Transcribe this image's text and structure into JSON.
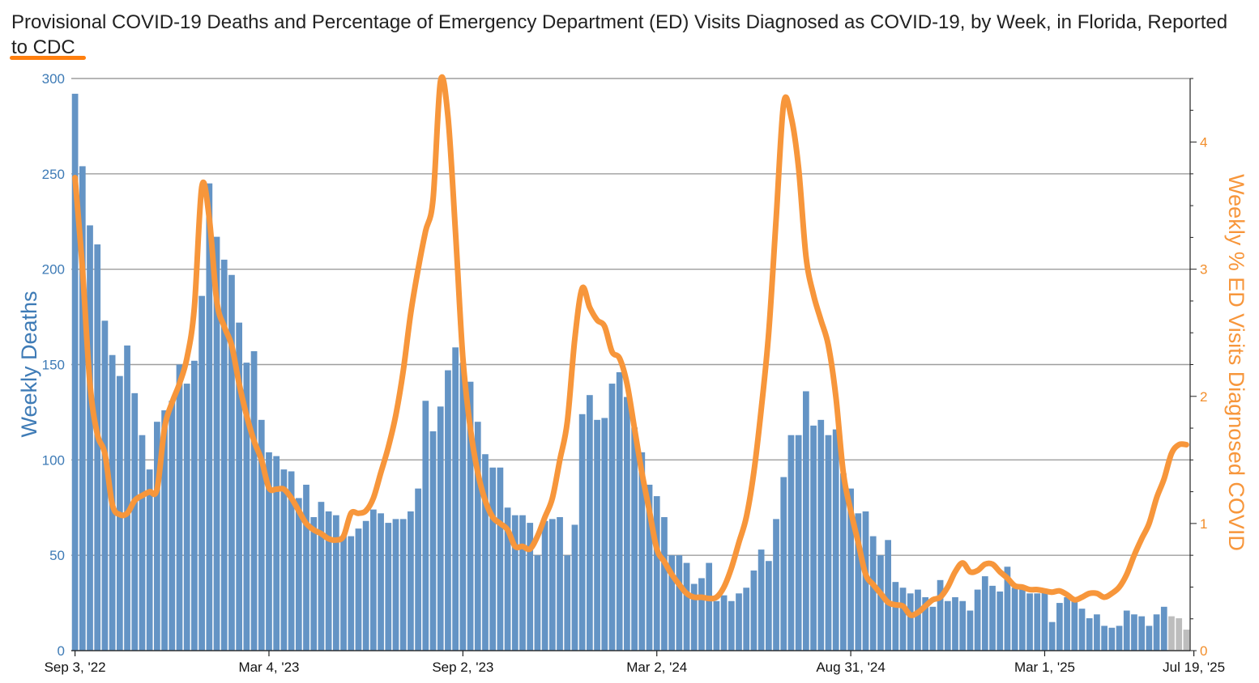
{
  "title_main": "Provisional COVID-19 Deaths and Percentage of Emergency Department (ED) Visits Diagnosed as COVID-19, by Week, in ",
  "title_state": "Florida",
  "title_suffix": ", Reported to CDC",
  "colors": {
    "bars": "#6494c5",
    "bars_incomplete": "#bdbdbd",
    "line": "#f7963b",
    "left_axis": "#3e7bb6",
    "right_axis": "#f28e2b",
    "grid": "#9e9e9e"
  },
  "chart_data": {
    "type": "bar",
    "title": "Provisional COVID-19 Deaths and Percentage of Emergency Department (ED) Visits Diagnosed as COVID-19, by Week, in Florida, Reported to CDC",
    "ylabel": "Weekly Deaths",
    "y2label": "Weekly % ED Visits Diagnosed COVID",
    "ylim": [
      0,
      300
    ],
    "y2lim": [
      0,
      4.5
    ],
    "yticks": [
      "0",
      "50",
      "100",
      "150",
      "200",
      "250",
      "300"
    ],
    "y2ticks": [
      "0",
      "1",
      "2",
      "3",
      "4"
    ],
    "xtick_labels": [
      "Sep 3, '22",
      "Mar 4, '23",
      "Sep 2, '23",
      "Mar 2, '24",
      "Aug 31, '24",
      "Mar 1, '25",
      "Jul 19, '25"
    ],
    "xtick_week_index": [
      0,
      26,
      52,
      78,
      104,
      130,
      150
    ],
    "grid": true,
    "series": [
      {
        "name": "Weekly Deaths",
        "type": "bar",
        "values": [
          292,
          254,
          223,
          213,
          173,
          155,
          144,
          160,
          135,
          113,
          95,
          120,
          126,
          131,
          150,
          140,
          152,
          186,
          245,
          217,
          205,
          197,
          172,
          151,
          157,
          121,
          104,
          102,
          95,
          94,
          80,
          87,
          70,
          78,
          73,
          71,
          60,
          60,
          64,
          68,
          74,
          72,
          67,
          69,
          69,
          73,
          85,
          131,
          115,
          128,
          147,
          159,
          151,
          141,
          120,
          103,
          96,
          96,
          75,
          71,
          71,
          67,
          50,
          68,
          69,
          70,
          50,
          66,
          124,
          134,
          121,
          122,
          140,
          146,
          133,
          117,
          104,
          87,
          81,
          70,
          50,
          50,
          46,
          35,
          38,
          46,
          26,
          29,
          26,
          30,
          33,
          42,
          53,
          47,
          69,
          91,
          113,
          113,
          136,
          118,
          121,
          113,
          116,
          93,
          85,
          72,
          73,
          60,
          50,
          58,
          36,
          33,
          30,
          32,
          28,
          23,
          37,
          26,
          28,
          26,
          21,
          32,
          39,
          34,
          31,
          44,
          33,
          33,
          30,
          30,
          31,
          15,
          25,
          28,
          26,
          22,
          17,
          19,
          13,
          12,
          13,
          21,
          19,
          18,
          13,
          19,
          23,
          18,
          17,
          11
        ],
        "incomplete_from_index": 147
      },
      {
        "name": "Weekly % ED Visits Diagnosed COVID",
        "type": "line",
        "axis": "right",
        "values": [
          3.72,
          3.0,
          2.1,
          1.7,
          1.55,
          1.15,
          1.07,
          1.08,
          1.18,
          1.22,
          1.25,
          1.27,
          1.75,
          1.95,
          2.1,
          2.3,
          2.7,
          3.65,
          3.4,
          2.75,
          2.55,
          2.4,
          2.1,
          1.85,
          1.65,
          1.5,
          1.28,
          1.27,
          1.27,
          1.2,
          1.1,
          1.0,
          0.95,
          0.92,
          0.88,
          0.87,
          0.9,
          1.08,
          1.08,
          1.1,
          1.2,
          1.4,
          1.6,
          1.85,
          2.2,
          2.65,
          3.0,
          3.3,
          3.55,
          4.48,
          4.2,
          3.3,
          2.3,
          1.75,
          1.4,
          1.18,
          1.05,
          1.0,
          0.95,
          0.82,
          0.82,
          0.8,
          0.9,
          1.05,
          1.2,
          1.5,
          1.8,
          2.45,
          2.85,
          2.7,
          2.6,
          2.55,
          2.35,
          2.3,
          2.1,
          1.75,
          1.4,
          1.1,
          0.8,
          0.7,
          0.6,
          0.52,
          0.45,
          0.42,
          0.42,
          0.41,
          0.42,
          0.5,
          0.65,
          0.85,
          1.05,
          1.4,
          1.9,
          2.5,
          3.4,
          4.3,
          4.2,
          3.8,
          3.1,
          2.8,
          2.6,
          2.4,
          2.0,
          1.4,
          1.1,
          0.85,
          0.6,
          0.52,
          0.45,
          0.38,
          0.36,
          0.35,
          0.28,
          0.3,
          0.35,
          0.4,
          0.42,
          0.5,
          0.62,
          0.69,
          0.62,
          0.63,
          0.68,
          0.68,
          0.62,
          0.57,
          0.51,
          0.5,
          0.48,
          0.48,
          0.47,
          0.46,
          0.47,
          0.44,
          0.4,
          0.42,
          0.45,
          0.45,
          0.42,
          0.45,
          0.5,
          0.6,
          0.75,
          0.88,
          1.0,
          1.2,
          1.35,
          1.55,
          1.62,
          1.62
        ]
      }
    ]
  }
}
